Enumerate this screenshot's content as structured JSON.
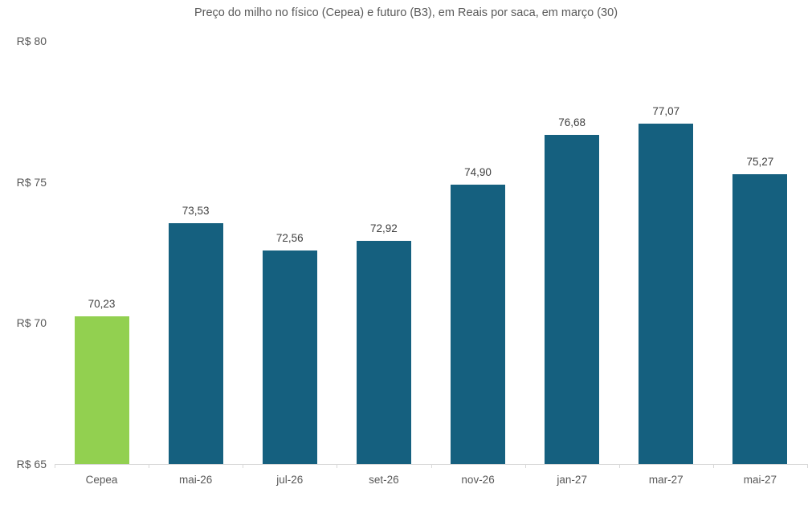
{
  "chart_data": {
    "type": "bar",
    "title": "Preço do milho no físico (Cepea) e futuro (B3), em Reais por saca, em março (30)",
    "categories": [
      "Cepea",
      "mai-26",
      "jul-26",
      "set-26",
      "nov-26",
      "jan-27",
      "mar-27",
      "mai-27"
    ],
    "values": [
      70.23,
      73.53,
      72.56,
      72.92,
      74.9,
      76.68,
      77.07,
      75.27
    ],
    "value_labels": [
      "70,23",
      "73,53",
      "72,56",
      "72,92",
      "74,90",
      "76,68",
      "77,07",
      "75,27"
    ],
    "series_colors": [
      "#92D050",
      "#15607F",
      "#15607F",
      "#15607F",
      "#15607F",
      "#15607F",
      "#15607F",
      "#15607F"
    ],
    "ylim": [
      65,
      80
    ],
    "yticks": [
      {
        "value": 65,
        "label": "R$ 65"
      },
      {
        "value": 70,
        "label": "R$ 70"
      },
      {
        "value": 75,
        "label": "R$ 75"
      },
      {
        "value": 80,
        "label": "R$ 80"
      }
    ],
    "grid": false,
    "legend": null,
    "colors": {
      "cepea_bar": "#92D050",
      "futures_bar": "#15607F",
      "value_label_text": "#404040",
      "axis_text": "#595959",
      "axis_line": "#d9d9d9",
      "background": "#ffffff"
    }
  }
}
